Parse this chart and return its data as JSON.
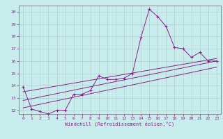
{
  "title": "",
  "xlabel": "Windchill (Refroidissement éolien,°C)",
  "background_color": "#c8ecec",
  "grid_color": "#b0d0d0",
  "line_color": "#882288",
  "xlim": [
    -0.5,
    23.5
  ],
  "ylim": [
    11.7,
    20.5
  ],
  "yticks": [
    12,
    13,
    14,
    15,
    16,
    17,
    18,
    19,
    20
  ],
  "xticks": [
    0,
    1,
    2,
    3,
    4,
    5,
    6,
    7,
    8,
    9,
    10,
    11,
    12,
    13,
    14,
    15,
    16,
    17,
    18,
    19,
    20,
    21,
    22,
    23
  ],
  "series1_x": [
    0,
    1,
    2,
    3,
    4,
    5,
    6,
    7,
    8,
    9,
    10,
    11,
    12,
    13,
    14,
    15,
    16,
    17,
    18,
    19,
    20,
    21,
    22,
    23
  ],
  "series1_y": [
    13.9,
    12.1,
    11.9,
    11.7,
    12.0,
    12.0,
    13.3,
    13.3,
    13.6,
    14.8,
    14.5,
    14.5,
    14.6,
    15.0,
    17.9,
    20.2,
    19.6,
    18.8,
    17.1,
    17.0,
    16.3,
    16.7,
    16.0,
    16.0
  ],
  "series2_x": [
    0,
    23
  ],
  "series2_y": [
    13.5,
    16.2
  ],
  "series3_x": [
    0,
    23
  ],
  "series3_y": [
    12.8,
    16.0
  ],
  "series4_x": [
    0,
    23
  ],
  "series4_y": [
    12.2,
    15.5
  ]
}
